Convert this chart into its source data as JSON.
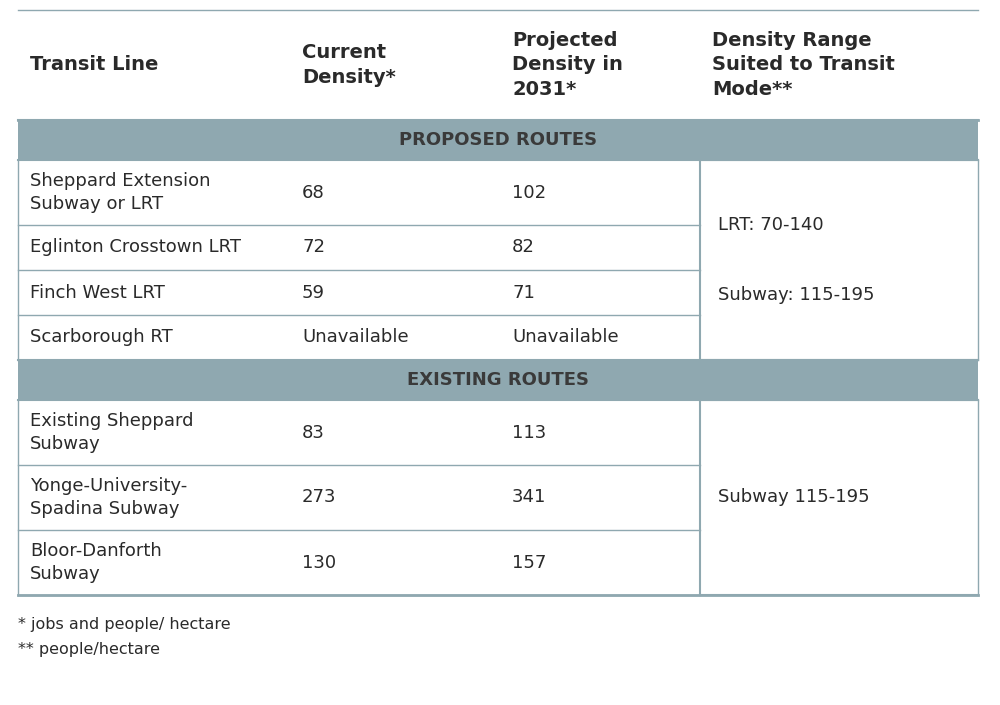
{
  "col_headers": [
    "Transit Line",
    "Current\nDensity*",
    "Projected\nDensity in\n2031*",
    "Density Range\nSuited to Transit\nMode**"
  ],
  "section_proposed": "PROPOSED ROUTES",
  "section_existing": "EXISTING ROUTES",
  "proposed_rows": [
    [
      "Sheppard Extension\nSubway or LRT",
      "68",
      "102"
    ],
    [
      "Eglinton Crosstown LRT",
      "72",
      "82"
    ],
    [
      "Finch West LRT",
      "59",
      "71"
    ],
    [
      "Scarborough RT",
      "Unavailable",
      "Unavailable"
    ]
  ],
  "proposed_density_range": "LRT: 70-140\n\nSubway: 115-195",
  "existing_rows": [
    [
      "Existing Sheppard\nSubway",
      "83",
      "113"
    ],
    [
      "Yonge-University-\nSpadina Subway",
      "273",
      "341"
    ],
    [
      "Bloor-Danforth\nSubway",
      "130",
      "157"
    ]
  ],
  "existing_density_range": "Subway 115-195",
  "footnotes": "* jobs and people/ hectare\n** people/hectare",
  "header_bg": "#ffffff",
  "section_bg": "#8fa8b0",
  "row_bg": "#ffffff",
  "border_color": "#8fa8b0",
  "text_color": "#2a2a2a",
  "header_font_size": 14,
  "body_font_size": 13,
  "footnote_font_size": 11.5
}
